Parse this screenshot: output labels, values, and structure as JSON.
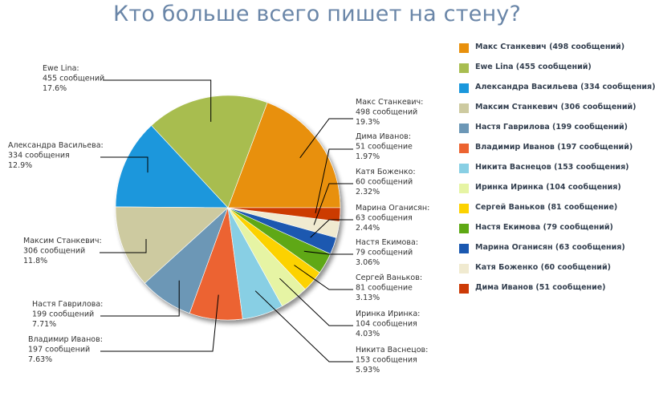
{
  "title": "Кто больше всего пишет на стену?",
  "chart_data": {
    "type": "pie",
    "title": "Кто больше всего пишет на стену?",
    "legend_position": "right",
    "slices": [
      {
        "name": "Макс Станкевич",
        "value": 498,
        "unit": "сообщений",
        "percent": "19.3%",
        "color": "#e8900c",
        "legend_label": "Макс Станкевич (498 сообщений)"
      },
      {
        "name": "Ewe Lina",
        "value": 455,
        "unit": "сообщений",
        "percent": "17.6%",
        "color": "#a8bd50",
        "legend_label": "Ewe Lina (455 сообщений)"
      },
      {
        "name": "Александра Васильева",
        "value": 334,
        "unit": "сообщения",
        "percent": "12.9%",
        "color": "#1a97dc",
        "legend_label": "Александра Васильева (334 сообщения)"
      },
      {
        "name": "Максим Станкевич",
        "value": 306,
        "unit": "сообщений",
        "percent": "11.8%",
        "color": "#cdcaa0",
        "legend_label": "Максим Станкевич (306 сообщений)"
      },
      {
        "name": "Настя Гаврилова",
        "value": 199,
        "unit": "сообщений",
        "percent": "7.71%",
        "color": "#6c97b6",
        "legend_label": "Настя Гаврилова (199 сообщений)"
      },
      {
        "name": "Владимир Иванов",
        "value": 197,
        "unit": "сообщений",
        "percent": "7.63%",
        "color": "#ec6330",
        "legend_label": "Владимир Иванов (197 сообщений)"
      },
      {
        "name": "Никита Васнецов",
        "value": 153,
        "unit": "сообщения",
        "percent": "5.93%",
        "color": "#88cfe4",
        "legend_label": "Никита Васнецов (153 сообщения)"
      },
      {
        "name": "Иринка Иринка",
        "value": 104,
        "unit": "сообщения",
        "percent": "4.03%",
        "color": "#e6f4a4",
        "legend_label": "Иринка Иринка (104 сообщения)"
      },
      {
        "name": "Сергей Ваньков",
        "value": 81,
        "unit": "сообщение",
        "percent": "3.13%",
        "color": "#fcd200",
        "legend_label": "Сергей Ваньков (81 сообщение)"
      },
      {
        "name": "Настя Екимова",
        "value": 79,
        "unit": "сообщений",
        "percent": "3.06%",
        "color": "#5ea814",
        "legend_label": "Настя Екимова (79 сообщений)"
      },
      {
        "name": "Марина Оганисян",
        "value": 63,
        "unit": "сообщения",
        "percent": "2.44%",
        "color": "#1a58b0",
        "legend_label": "Марина Оганисян (63 сообщения)"
      },
      {
        "name": "Катя Боженко",
        "value": 60,
        "unit": "сообщений",
        "percent": "2.32%",
        "color": "#f0ead0",
        "legend_label": "Катя Боженко (60 сообщений)"
      },
      {
        "name": "Дима Иванов",
        "value": 51,
        "unit": "сообщение",
        "percent": "1.97%",
        "color": "#cc3a06",
        "legend_label": "Дима Иванов (51 сообщение)"
      }
    ]
  }
}
